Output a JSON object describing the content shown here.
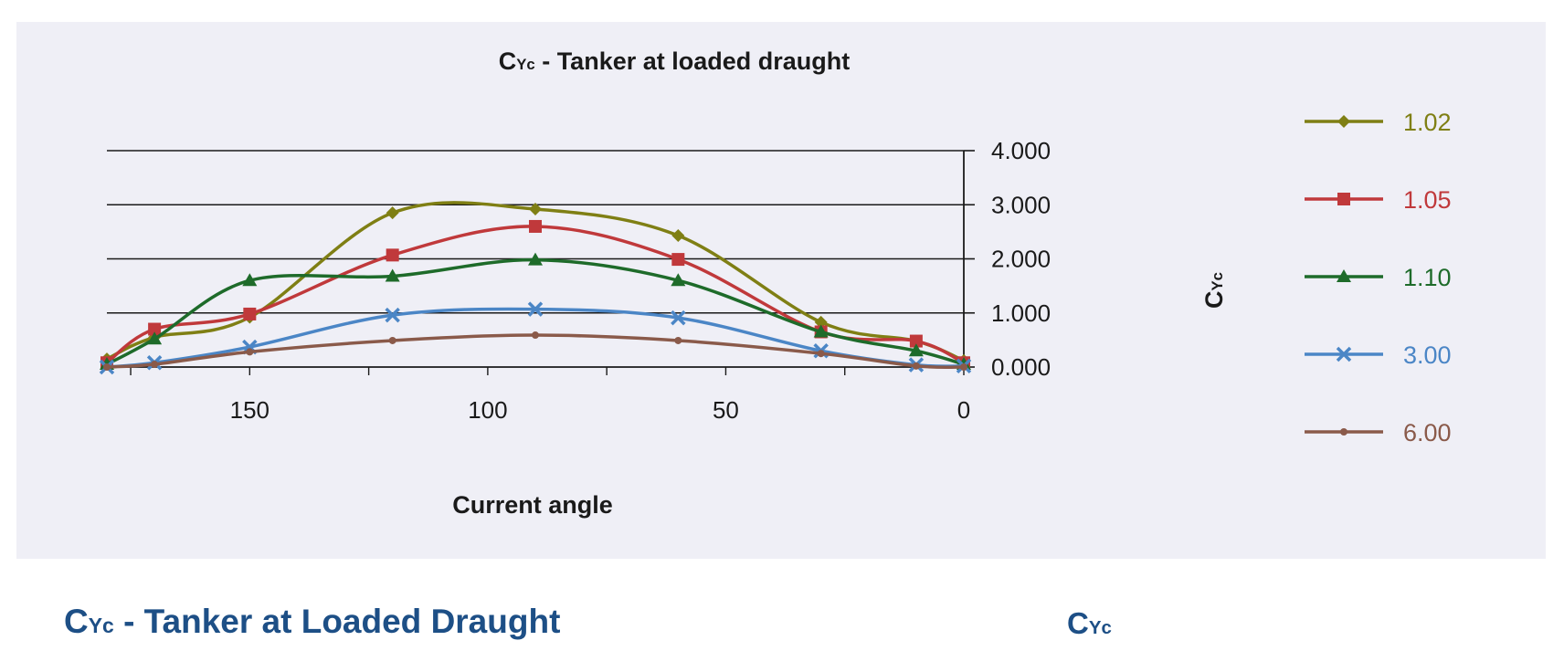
{
  "caption": {
    "main": "C",
    "sub": "Yc",
    "rest": " - Tanker at Loaded Draught"
  },
  "caption_right": {
    "main": "C",
    "sub": "Yc"
  },
  "chart_data": {
    "type": "line",
    "title": {
      "main": "C",
      "sub": "Yc",
      "rest": " - Tanker at loaded draught"
    },
    "xlabel": "Current angle",
    "ylabel": {
      "main": "C",
      "sub": "Yc"
    },
    "x_reversed": true,
    "xlim": [
      180,
      0
    ],
    "ylim": [
      0,
      4
    ],
    "x_ticks": [
      "150",
      "100",
      "50",
      "0"
    ],
    "y_ticks": [
      "0.000",
      "1.000",
      "2.000",
      "3.000",
      "4.000"
    ],
    "y_axis_position": "right",
    "grid": "horizontal",
    "legend_position": "right",
    "x": [
      180,
      170,
      150,
      120,
      90,
      60,
      30,
      10,
      0
    ],
    "series": [
      {
        "name": "1.02",
        "color": "#7f7f14",
        "marker": "diamond",
        "values": [
          0.15,
          0.55,
          0.92,
          2.85,
          2.92,
          2.43,
          0.83,
          0.48,
          0.12
        ]
      },
      {
        "name": "1.05",
        "color": "#c0393b",
        "marker": "square",
        "values": [
          0.08,
          0.7,
          0.98,
          2.07,
          2.6,
          1.99,
          0.65,
          0.48,
          0.08
        ]
      },
      {
        "name": "1.10",
        "color": "#1e6b2a",
        "marker": "triangle",
        "values": [
          0.05,
          0.52,
          1.6,
          1.68,
          1.98,
          1.6,
          0.65,
          0.3,
          0.05
        ]
      },
      {
        "name": "3.00",
        "color": "#4b86c6",
        "marker": "x",
        "values": [
          0.0,
          0.08,
          0.37,
          0.96,
          1.07,
          0.91,
          0.3,
          0.04,
          0.02
        ]
      },
      {
        "name": "6.00",
        "color": "#8a5a4a",
        "marker": "dot",
        "values": [
          0.0,
          0.05,
          0.28,
          0.49,
          0.59,
          0.49,
          0.25,
          0.02,
          0.0
        ]
      }
    ]
  }
}
